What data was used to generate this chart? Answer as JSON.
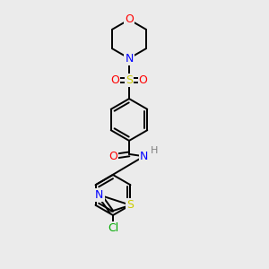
{
  "background_color": "#EBEBEB",
  "atom_colors": {
    "C": "#000000",
    "N": "#0000FF",
    "O": "#FF0000",
    "S_sulfonyl": "#CCCC00",
    "S_thiazole": "#CCCC00",
    "Cl": "#00AA00",
    "H": "#808080"
  },
  "bond_lw": 1.4,
  "fontsize": 9
}
